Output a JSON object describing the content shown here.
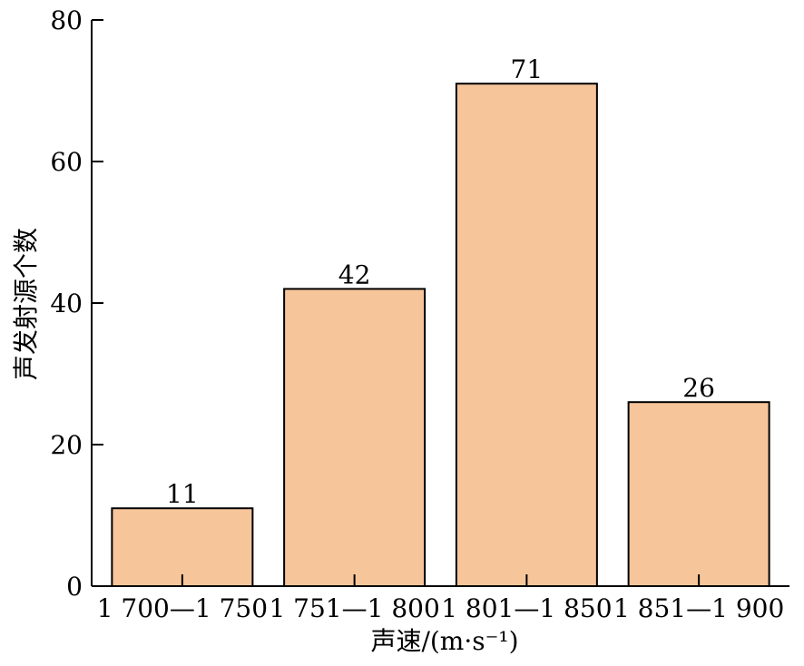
{
  "chart_data": {
    "type": "bar",
    "categories": [
      "1 700—1 750",
      "1 751—1 800",
      "1 801—1 850",
      "1 851—1 900"
    ],
    "values": [
      11,
      42,
      71,
      26
    ],
    "data_labels": [
      "11",
      "42",
      "71",
      "26"
    ],
    "title": "",
    "xlabel": "声速/(m·s⁻¹)",
    "ylabel": "声发射源个数",
    "ylim": [
      0,
      80
    ],
    "yticks": [
      0,
      20,
      40,
      60,
      80
    ],
    "ytick_labels": [
      "0",
      "20",
      "40",
      "60",
      "80"
    ],
    "grid": false,
    "colors": {
      "bar_fill": "#F7C59A",
      "bar_stroke": "#000000",
      "axis": "#000000"
    }
  }
}
